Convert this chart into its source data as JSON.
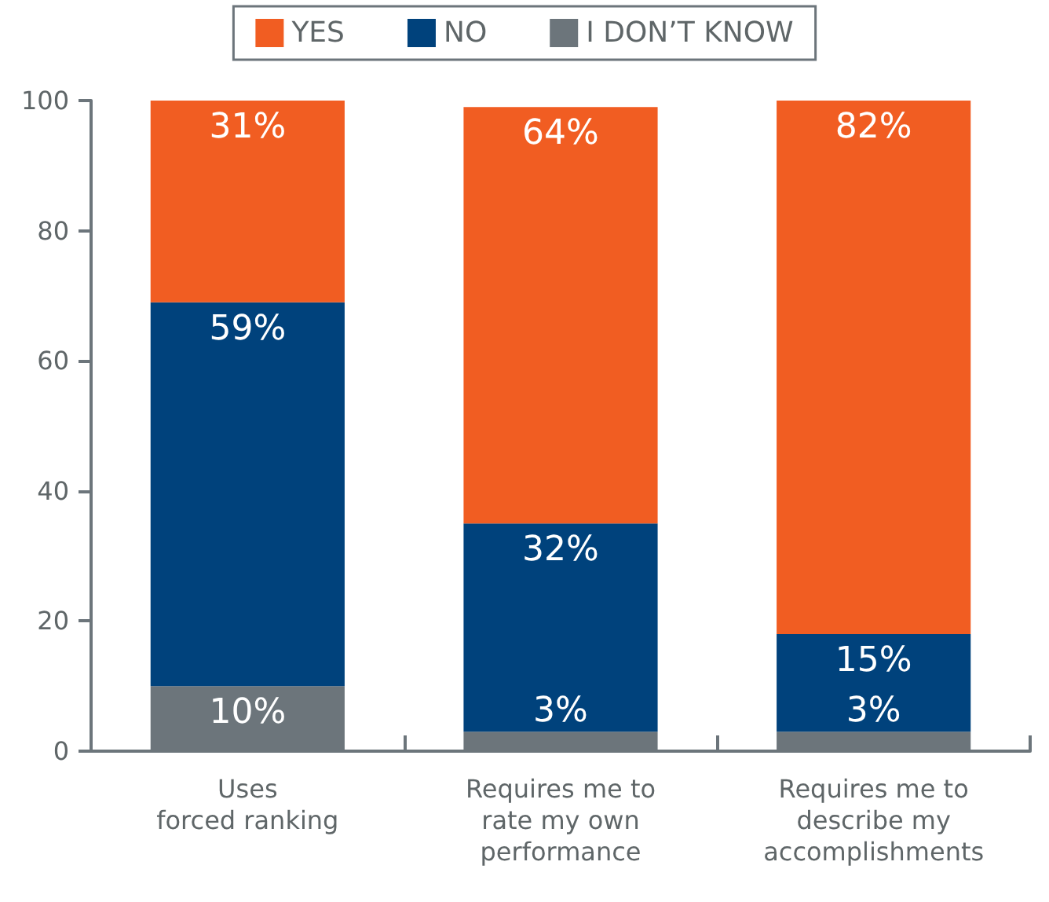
{
  "chart_data": {
    "type": "bar",
    "stacked": true,
    "categories": [
      "Uses\nforced ranking",
      "Requires me to\nrate my own\nperformance",
      "Requires me to\ndescribe my\naccomplishments"
    ],
    "series": [
      {
        "name": "I DON’T KNOW",
        "color": "#6c757b",
        "values": [
          10,
          3,
          3
        ],
        "value_labels": [
          "10%",
          "3%",
          "3%"
        ]
      },
      {
        "name": "NO",
        "color": "#00427c",
        "values": [
          59,
          32,
          15
        ],
        "value_labels": [
          "59%",
          "32%",
          "15%"
        ]
      },
      {
        "name": "YES",
        "color": "#f15d22",
        "values": [
          31,
          64,
          82
        ],
        "value_labels": [
          "31%",
          "64%",
          "82%"
        ]
      }
    ],
    "ylim": [
      0,
      100
    ],
    "yticks": [
      0,
      20,
      40,
      60,
      80,
      100
    ],
    "grid": false,
    "legend": "top"
  }
}
